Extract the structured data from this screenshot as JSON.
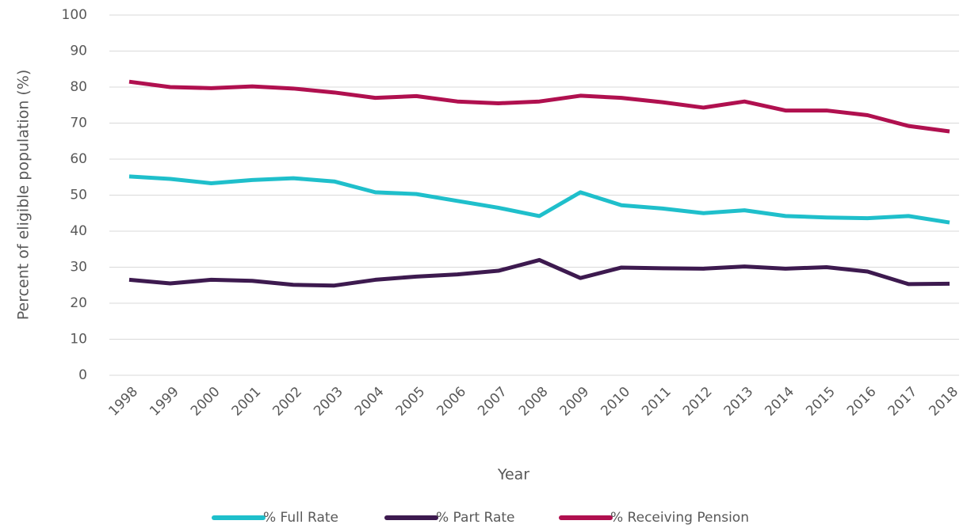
{
  "chart_data": {
    "type": "line",
    "x_label": "Year",
    "y_label": "Percent of eligible population (%)",
    "categories": [
      "1998",
      "1999",
      "2000",
      "2001",
      "2002",
      "2003",
      "2004",
      "2005",
      "2006",
      "2007",
      "2008",
      "2009",
      "2010",
      "2011",
      "2012",
      "2013",
      "2014",
      "2015",
      "2016",
      "2017",
      "2018"
    ],
    "series": [
      {
        "name": "% Full Rate",
        "color": "#1fbfcb",
        "values": [
          55.2,
          54.5,
          53.3,
          54.2,
          54.7,
          53.8,
          50.8,
          50.3,
          48.4,
          46.5,
          44.2,
          50.8,
          47.2,
          46.3,
          45,
          45.8,
          44.2,
          43.8,
          43.6,
          44.2,
          42.4
        ]
      },
      {
        "name": "% Part Rate",
        "color": "#3d1a4f",
        "values": [
          26.5,
          25.5,
          26.5,
          26.2,
          25.1,
          24.9,
          26.5,
          27.4,
          28,
          29,
          32,
          27,
          29.9,
          29.7,
          29.6,
          30.2,
          29.6,
          30,
          28.8,
          25.3,
          25.4
        ]
      },
      {
        "name": "% Receiving Pension",
        "color": "#b0104f",
        "values": [
          81.5,
          80,
          79.7,
          80.2,
          79.6,
          78.5,
          77,
          77.5,
          76,
          75.5,
          76,
          77.6,
          77,
          75.8,
          74.3,
          76,
          73.5,
          73.5,
          72.2,
          69.2,
          67.7
        ]
      }
    ],
    "ylim": [
      0,
      100
    ],
    "yticks": [
      0,
      10,
      20,
      30,
      40,
      50,
      60,
      70,
      80,
      90,
      100
    ],
    "grid": true,
    "legend": "bottom"
  }
}
